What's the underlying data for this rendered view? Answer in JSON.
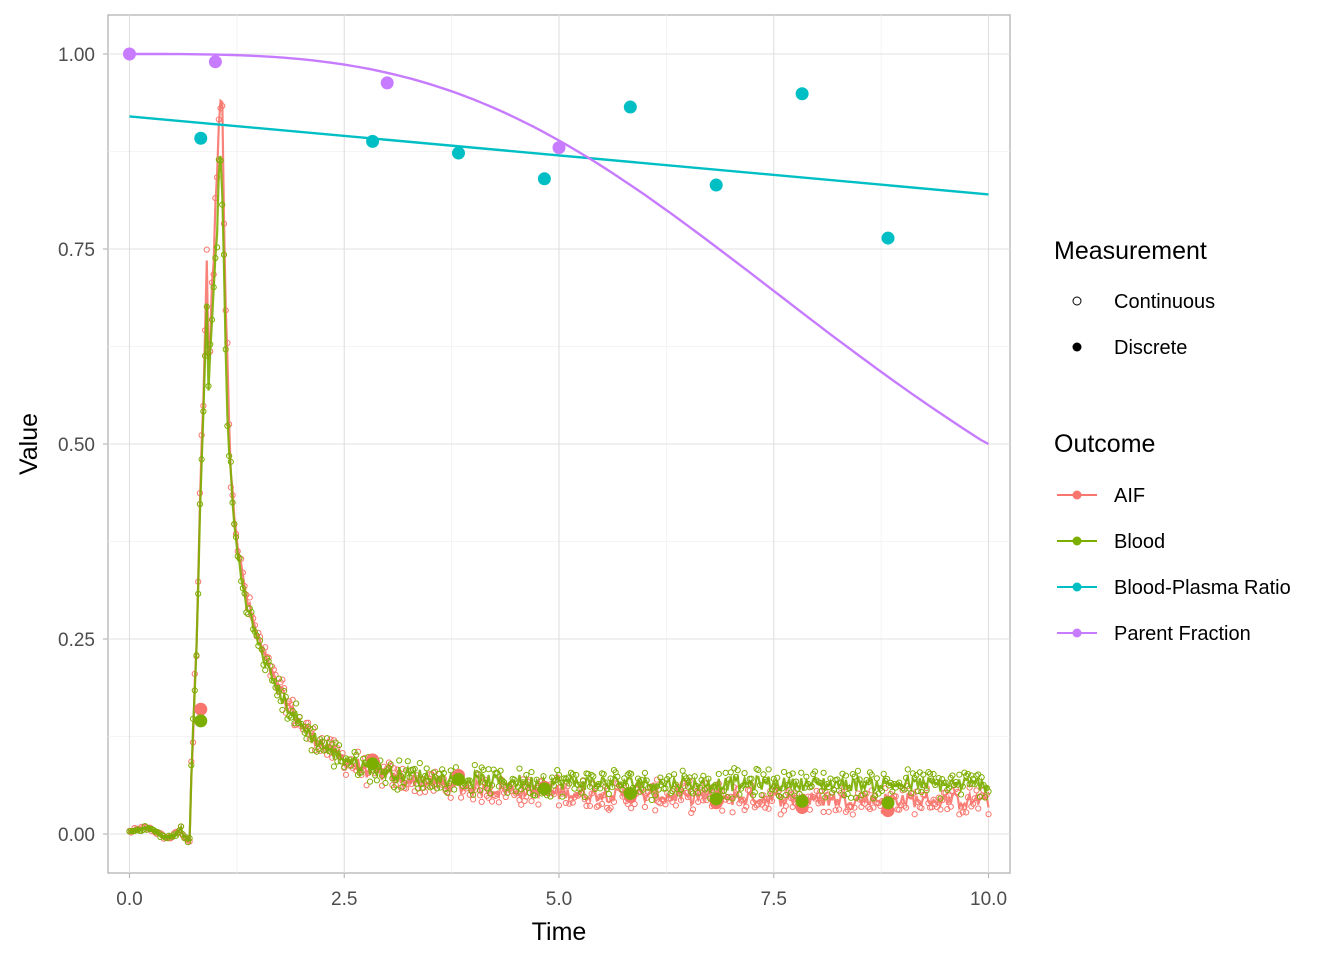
{
  "chart_data": {
    "type": "scatter",
    "xlabel": "Time",
    "ylabel": "Value",
    "xlim": [
      -0.25,
      10.25
    ],
    "ylim": [
      -0.05,
      1.05
    ],
    "x_ticks": [
      0,
      2.5,
      5,
      7.5,
      10
    ],
    "x_tick_labels": [
      "0.0",
      "2.5",
      "5.0",
      "7.5",
      "10.0"
    ],
    "y_ticks": [
      0,
      0.25,
      0.5,
      0.75,
      1.0
    ],
    "y_tick_labels": [
      "0.00",
      "0.25",
      "0.50",
      "0.75",
      "1.00"
    ],
    "grid": true,
    "legend_position": "right",
    "legends": {
      "measurement": {
        "title": "Measurement",
        "items": [
          {
            "label": "Continuous",
            "shape": "open-circle"
          },
          {
            "label": "Discrete",
            "shape": "filled-circle"
          }
        ]
      },
      "outcome": {
        "title": "Outcome",
        "items": [
          {
            "label": "AIF",
            "color": "#F8766D"
          },
          {
            "label": "Blood",
            "color": "#7CAE00"
          },
          {
            "label": "Blood-Plasma Ratio",
            "color": "#00BFC4"
          },
          {
            "label": "Parent Fraction",
            "color": "#C77CFF"
          }
        ]
      }
    },
    "series": [
      {
        "name": "AIF",
        "color": "#F8766D",
        "discrete": {
          "x": [
            0.83,
            2.83,
            3.83,
            4.83,
            5.83,
            6.83,
            7.83,
            8.83
          ],
          "y": [
            0.16,
            0.095,
            0.075,
            0.06,
            0.048,
            0.04,
            0.034,
            0.03
          ]
        },
        "continuous_model": {
          "baseline_until": 0.7,
          "rise_end": 1.08,
          "peak": 1.0,
          "tail_plateau": 0.04
        }
      },
      {
        "name": "Blood",
        "color": "#7CAE00",
        "discrete": {
          "x": [
            0.83,
            2.83,
            3.83,
            4.83,
            5.83,
            6.83,
            7.83,
            8.83
          ],
          "y": [
            0.145,
            0.09,
            0.07,
            0.058,
            0.052,
            0.045,
            0.042,
            0.04
          ]
        },
        "continuous_model": {
          "baseline_until": 0.7,
          "rise_end": 1.08,
          "peak": 0.92,
          "tail_plateau": 0.063
        }
      },
      {
        "name": "Blood-Plasma Ratio",
        "color": "#00BFC4",
        "discrete": {
          "x": [
            0.83,
            2.83,
            3.83,
            4.83,
            5.83,
            6.83,
            7.83,
            8.83
          ],
          "y": [
            0.892,
            0.888,
            0.873,
            0.84,
            0.932,
            0.832,
            0.949,
            0.764
          ]
        },
        "fit": {
          "x": [
            0,
            10
          ],
          "y": [
            0.92,
            0.82
          ]
        }
      },
      {
        "name": "Parent Fraction",
        "color": "#C77CFF",
        "discrete": {
          "x": [
            0,
            1.0,
            3.0,
            5.0
          ],
          "y": [
            1.0,
            0.99,
            0.963,
            0.88
          ]
        },
        "fit": {
          "shape": "sigmoid",
          "x_range": [
            0,
            10
          ],
          "y_start": 1.0,
          "y_end": 0.5
        }
      }
    ]
  }
}
